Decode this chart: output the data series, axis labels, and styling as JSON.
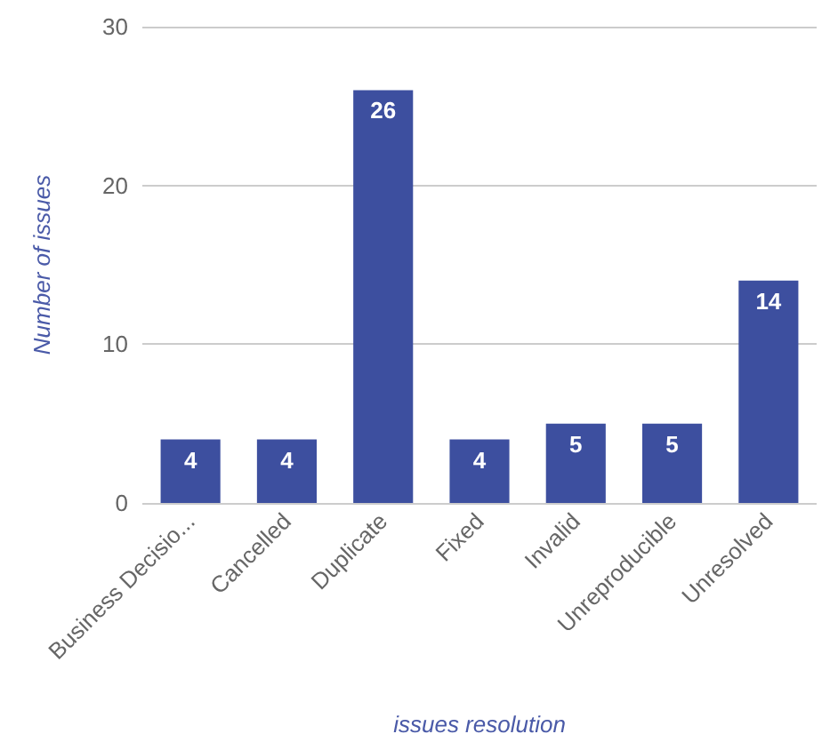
{
  "chart_data": {
    "type": "bar",
    "xlabel": "issues resolution",
    "ylabel": "Number of issues",
    "categories": [
      "Business Decisio...",
      "Cancelled",
      "Duplicate",
      "Fixed",
      "Invalid",
      "Unreproducible",
      "Unresolved"
    ],
    "values": [
      4,
      4,
      26,
      4,
      5,
      5,
      14
    ],
    "color": "#3d4f9f",
    "ylim": [
      0,
      30
    ],
    "yticks": [
      0,
      10,
      20,
      30
    ],
    "grid": "y",
    "data_labels": true
  }
}
